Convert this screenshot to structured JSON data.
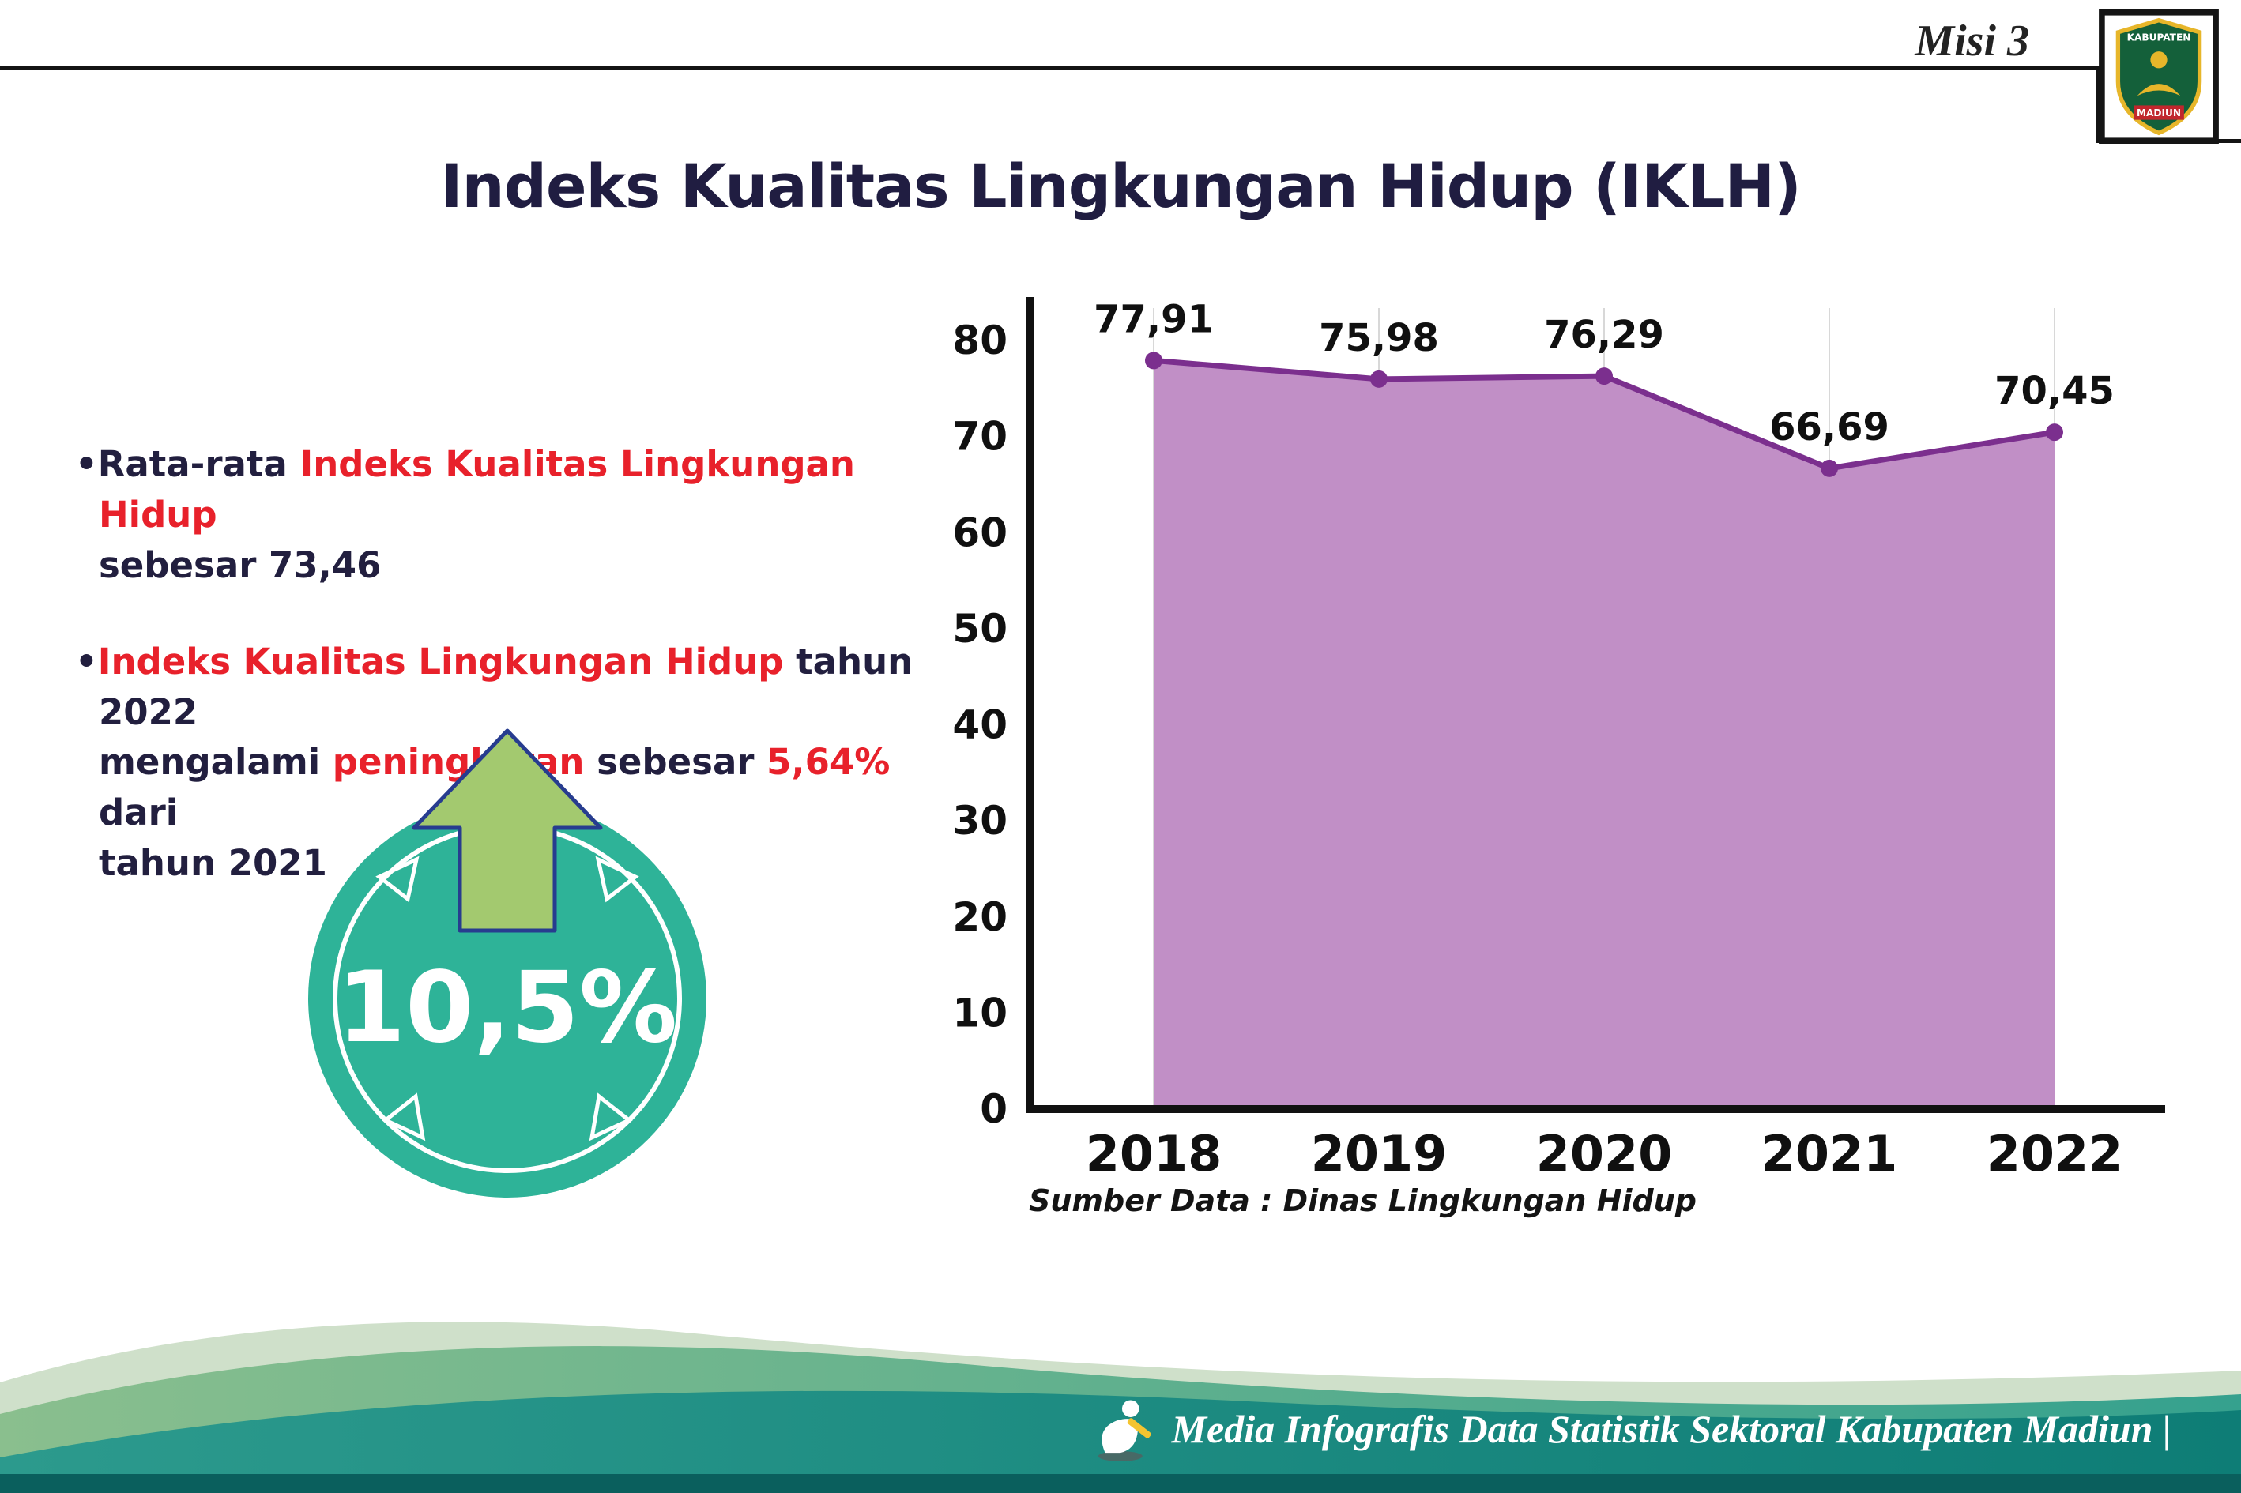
{
  "colors": {
    "accent_red": "#e8212b",
    "dark_text": "#221f3f",
    "badge_teal": "#2eb398",
    "arrow_green": "#a3c96f",
    "line_purple": "#7b2f8e",
    "fill_purple": "#c18fc6",
    "footer_teal": "#1f9488",
    "footer_dark_strip": "#0a5f5d"
  },
  "header": {
    "misi": "Misi 3",
    "title": "Indeks Kualitas Lingkungan Hidup (IKLH)",
    "logo_top": "KABUPATEN",
    "logo_bottom": "MADIUN"
  },
  "bullets": [
    {
      "segments": [
        {
          "t": "Rata-rata ",
          "c": "dark"
        },
        {
          "t": "Indeks Kualitas Lingkungan Hidup",
          "c": "red"
        },
        {
          "br": true
        },
        {
          "t": "sebesar 73,46",
          "c": "dark"
        }
      ]
    },
    {
      "segments": [
        {
          "t": "Indeks Kualitas Lingkungan Hidup",
          "c": "red"
        },
        {
          "t": " tahun 2022",
          "c": "dark"
        },
        {
          "br": true
        },
        {
          "t": "mengalami ",
          "c": "dark"
        },
        {
          "t": "peningkatan",
          "c": "red"
        },
        {
          "t": " sebesar ",
          "c": "dark"
        },
        {
          "t": "5,64%",
          "c": "red"
        },
        {
          "t": " dari",
          "c": "dark"
        },
        {
          "br": true
        },
        {
          "t": "tahun 2021",
          "c": "dark"
        }
      ]
    }
  ],
  "badge": {
    "value": "10,5%"
  },
  "chart_data": {
    "type": "area",
    "title": "Indeks Kualitas Lingkungan Hidup (IKLH)",
    "categories": [
      "2018",
      "2019",
      "2020",
      "2021",
      "2022"
    ],
    "values": [
      77.91,
      75.98,
      76.29,
      66.69,
      70.45
    ],
    "point_labels": [
      "77,91",
      "75,98",
      "76,29",
      "66,69",
      "70,45"
    ],
    "ylim": [
      0,
      80
    ],
    "yticks": [
      0,
      10,
      20,
      30,
      40,
      50,
      60,
      70,
      80
    ],
    "grid": "vertical-light",
    "legend": "none",
    "line_color": "#7b2f8e",
    "fill_color": "#c18fc6",
    "source": "Sumber Data : Dinas Lingkungan Hidup"
  },
  "footer": {
    "text": "Media Infografis Data Statistik Sektoral Kabupaten Madiun |"
  }
}
